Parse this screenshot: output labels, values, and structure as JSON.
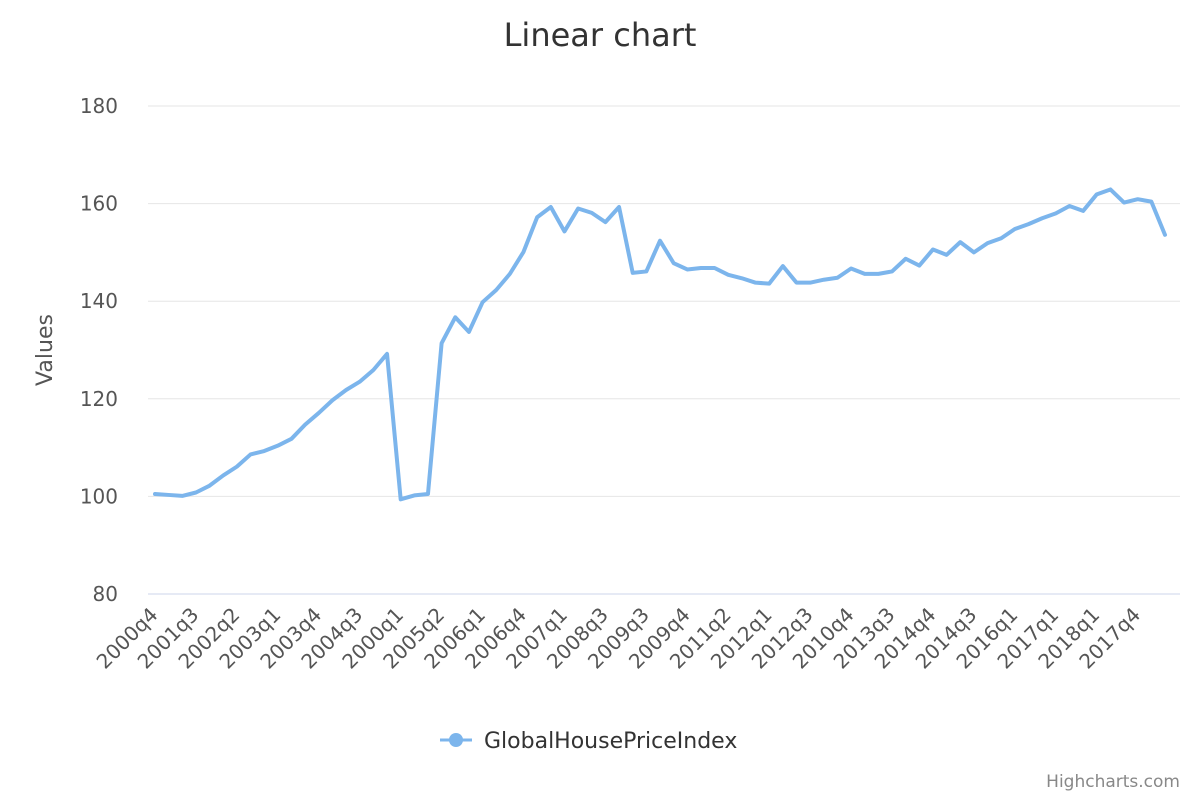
{
  "chart_data": {
    "type": "line",
    "title": "Linear chart",
    "ylabel": "Values",
    "ylim": [
      80,
      180
    ],
    "y_ticks": [
      "80",
      "100",
      "120",
      "140",
      "160",
      "180"
    ],
    "x_tick_labels": [
      "2000q4",
      "2001q3",
      "2002q2",
      "2003q1",
      "2003q4",
      "2004q3",
      "2000q1",
      "2005q2",
      "2006q1",
      "2006q4",
      "2007q1",
      "2008q3",
      "2009q3",
      "2009q4",
      "2011q2",
      "2012q1",
      "2012q3",
      "2010q4",
      "2013q3",
      "2014q4",
      "2014q3",
      "2016q1",
      "2017q1",
      "2018q1",
      "2017q4"
    ],
    "tick_every": 3,
    "grid": true,
    "legend_position": "bottom-center",
    "series": [
      {
        "name": "GlobalHousePriceIndex",
        "color": "#7cb5ec",
        "values": [
          100.5,
          100.3,
          100.1,
          100.8,
          102.2,
          104.3,
          106.1,
          108.6,
          109.3,
          110.4,
          111.8,
          114.7,
          117.1,
          119.7,
          121.8,
          123.5,
          125.9,
          129.2,
          99.4,
          100.2,
          100.5,
          131.4,
          136.7,
          133.7,
          139.8,
          142.3,
          145.6,
          150.1,
          157.2,
          159.3,
          154.3,
          159.0,
          158.1,
          156.2,
          159.3,
          145.8,
          146.1,
          152.4,
          147.8,
          146.5,
          146.8,
          146.8,
          145.4,
          144.7,
          143.8,
          143.6,
          147.2,
          143.8,
          143.8,
          144.4,
          144.8,
          146.7,
          145.6,
          145.6,
          146.1,
          148.7,
          147.3,
          150.6,
          149.5,
          152.1,
          150.0,
          151.9,
          152.9,
          154.8,
          155.8,
          157.0,
          158.0,
          159.5,
          158.5,
          161.9,
          162.9,
          160.2,
          160.9,
          160.4,
          153.6
        ]
      }
    ]
  },
  "credits": "Highcharts.com"
}
